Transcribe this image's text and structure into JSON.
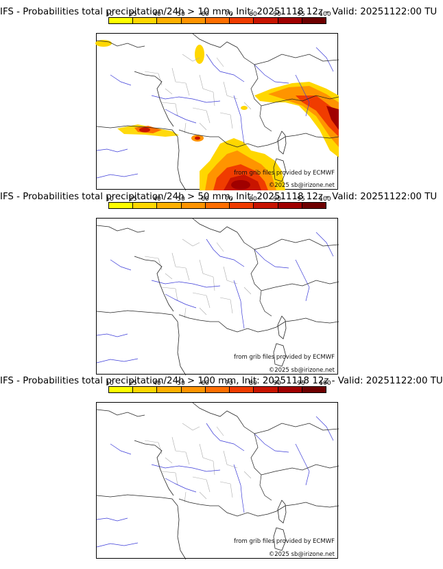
{
  "legend": {
    "ticks": [
      "10",
      "25",
      "40",
      "50",
      "60",
      "70",
      "80",
      "90",
      "95",
      "100"
    ],
    "colors": [
      "#ffff00",
      "#ffd700",
      "#ffb000",
      "#ff9400",
      "#ff6e00",
      "#f03c00",
      "#c81400",
      "#a00000",
      "#6e0000"
    ]
  },
  "panels": [
    {
      "title": "IFS - Probabilities total precipitation/24h > 10 mm, Init: 20251118 12z - Valid: 20251122:00 TU",
      "credit_source": "from grib files provided by ECMWF",
      "credit_copyright": "©2025 sb@irizone.net",
      "has_precip": true
    },
    {
      "title": "IFS - Probabilities total precipitation/24h > 50 mm, Init: 20251118 12z - Valid: 20251122:00 TU",
      "credit_source": "from grib files provided by ECMWF",
      "credit_copyright": "©2025 sb@irizone.net",
      "has_precip": false
    },
    {
      "title": "IFS - Probabilities total precipitation/24h > 100 mm, Init: 20251118 12z - Valid: 20251122:00 TU",
      "credit_source": "from grib files provided by ECMWF",
      "credit_copyright": "©2025 sb@irizone.net",
      "has_precip": false
    }
  ]
}
